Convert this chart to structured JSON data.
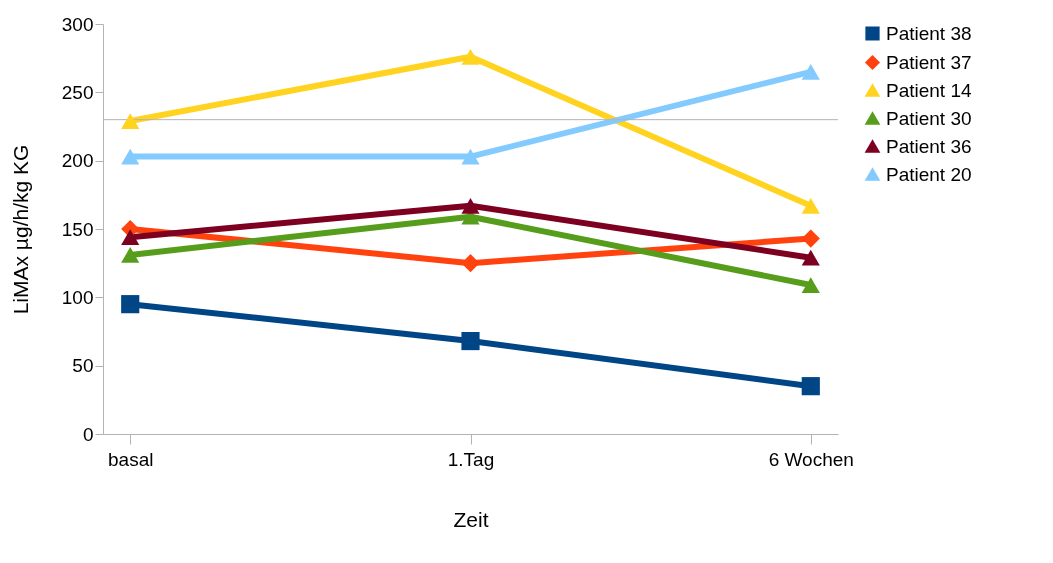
{
  "chart_data": {
    "type": "line",
    "xlabel": "Zeit",
    "ylabel": "LiMAx µg/h/kg KG",
    "categories": [
      "basal",
      "1.Tag",
      "6 Wochen"
    ],
    "ylim": [
      0,
      300
    ],
    "yticks": [
      0,
      50,
      100,
      150,
      200,
      250,
      300
    ],
    "grid": false,
    "legend": "right",
    "line_style": "solid",
    "ref_lines": [
      {
        "axis": "y",
        "value": 230,
        "color": "#b3b3b3"
      }
    ],
    "series": [
      {
        "name": "Patient 38",
        "color": "#004586",
        "marker": "square",
        "values": [
          95,
          68,
          35
        ]
      },
      {
        "name": "Patient 37",
        "color": "#ff420e",
        "marker": "diamond",
        "values": [
          150,
          125,
          143
        ]
      },
      {
        "name": "Patient 14",
        "color": "#ffd320",
        "marker": "triangle",
        "values": [
          229,
          276,
          167
        ]
      },
      {
        "name": "Patient 30",
        "color": "#579d1c",
        "marker": "triangle",
        "values": [
          131,
          159,
          109
        ]
      },
      {
        "name": "Patient 36",
        "color": "#7e0021",
        "marker": "triangle",
        "values": [
          144,
          167,
          129
        ]
      },
      {
        "name": "Patient 20",
        "color": "#83caff",
        "marker": "triangle",
        "values": [
          203,
          203,
          265
        ]
      }
    ]
  }
}
